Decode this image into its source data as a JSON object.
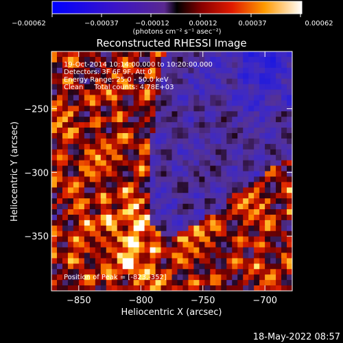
{
  "chart_data": {
    "type": "heatmap",
    "title": "Reconstructed RHESSI Image",
    "xlabel": "Heliocentric X (arcsec)",
    "ylabel": "Heliocentric Y (arcsec)",
    "x_ticks": [
      -850,
      -800,
      -750,
      -700
    ],
    "y_ticks": [
      -250,
      -300,
      -350
    ],
    "xlim": [
      -872,
      -678
    ],
    "ylim": [
      -393,
      -205
    ],
    "colorbar": {
      "ticks": [
        "-0.00062",
        "-0.00037",
        "-0.00012",
        "0.00012",
        "0.00037",
        "0.00062"
      ],
      "range": [
        -0.00062,
        0.00062
      ],
      "label": "(photons cm⁻² s⁻¹ asec⁻²)"
    },
    "annotations": [
      "19-Oct-2014 10:14:00.000 to 10:20:00.000",
      "Detectors: 3F 6F 9F, Att 0",
      "Energy Range: 25.0 - 50.0 keV",
      "Clean     Total counts: 4.78E+03"
    ],
    "peak_label": "Position of Peak = [-823,-352]",
    "peak": [
      -823,
      -352
    ],
    "grid": false
  },
  "footer": {
    "date": "18-May-2022 08:57"
  }
}
